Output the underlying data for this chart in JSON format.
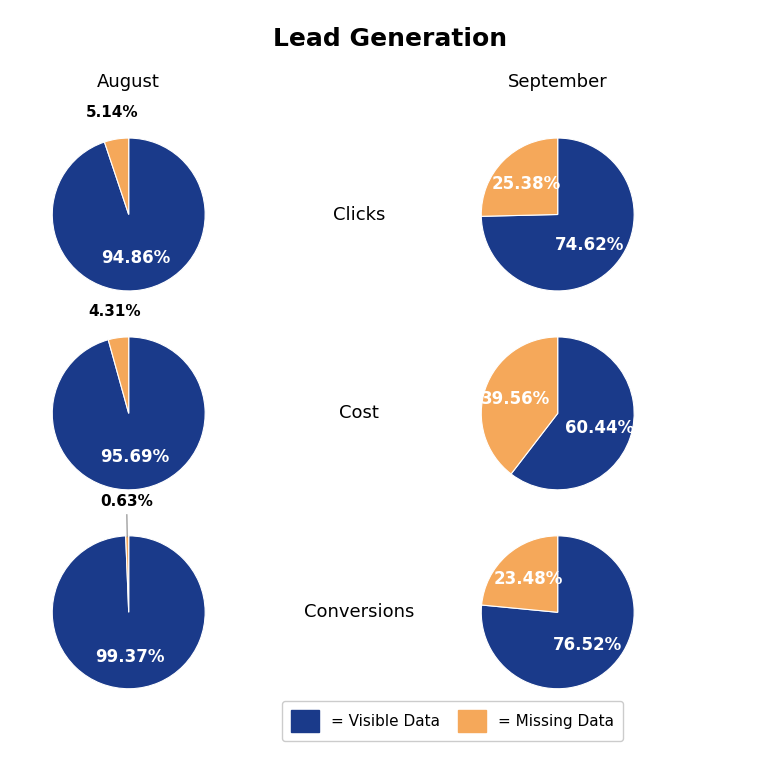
{
  "title": "Lead Generation",
  "title_fontsize": 18,
  "title_fontweight": "bold",
  "col_labels": [
    "August",
    "September"
  ],
  "row_labels": [
    "Clicks",
    "Cost",
    "Conversions"
  ],
  "col_label_fontsize": 13,
  "row_label_fontsize": 13,
  "charts": [
    {
      "visible": 94.86,
      "missing": 5.14
    },
    {
      "visible": 74.62,
      "missing": 25.38
    },
    {
      "visible": 95.69,
      "missing": 4.31
    },
    {
      "visible": 60.44,
      "missing": 39.56
    },
    {
      "visible": 99.37,
      "missing": 0.63
    },
    {
      "visible": 76.52,
      "missing": 23.48
    }
  ],
  "color_visible": "#1A3A8A",
  "color_missing": "#F5A85A",
  "text_color_white": "#FFFFFF",
  "text_color_black": "#000000",
  "legend_label_visible": "= Visible Data",
  "legend_label_missing": "= Missing Data",
  "background_color": "#FFFFFF",
  "pct_fontsize": 12,
  "small_pct_fontsize": 11,
  "startangle": 90,
  "outside_threshold": 8.0
}
